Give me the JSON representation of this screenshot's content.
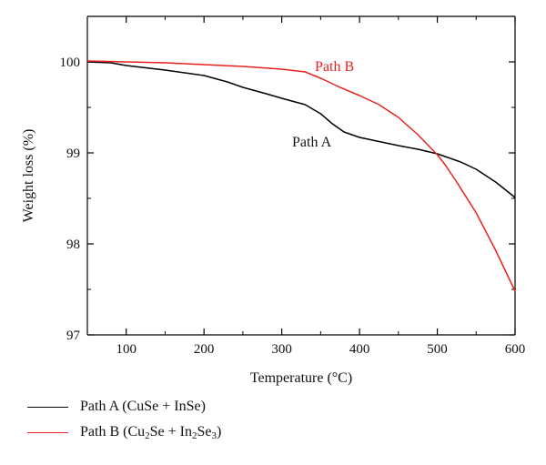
{
  "chart_data": {
    "type": "line",
    "xlabel": "Temperature (°C)",
    "ylabel": "Weight loss (%)",
    "xlim": [
      50,
      600
    ],
    "ylim": [
      97,
      100.5
    ],
    "xticks": [
      100,
      200,
      300,
      400,
      500,
      600
    ],
    "yticks": [
      97,
      98,
      99,
      100
    ],
    "grid": false,
    "legend_position": "bottom",
    "series": [
      {
        "id": "path_a",
        "color": "#000000",
        "annotation": "Path A",
        "legend_label": "Path A (CuSe + InSe)",
        "legend_parts": [
          {
            "t": "Path A (CuSe + InSe)"
          }
        ],
        "x": [
          50,
          80,
          100,
          150,
          200,
          230,
          250,
          280,
          300,
          330,
          350,
          365,
          380,
          400,
          450,
          475,
          500,
          530,
          550,
          575,
          600
        ],
        "y": [
          100.0,
          99.99,
          99.96,
          99.91,
          99.85,
          99.78,
          99.72,
          99.65,
          99.6,
          99.53,
          99.43,
          99.32,
          99.23,
          99.17,
          99.08,
          99.04,
          98.99,
          98.9,
          98.82,
          98.68,
          98.51
        ]
      },
      {
        "id": "path_b",
        "color": "#e8211c",
        "annotation": "Path B",
        "legend_label": "Path B (Cu2Se + In2Se3)",
        "legend_parts": [
          {
            "t": "Path B (Cu"
          },
          {
            "t": "2",
            "sub": true
          },
          {
            "t": "Se + In"
          },
          {
            "t": "2",
            "sub": true
          },
          {
            "t": "Se"
          },
          {
            "t": "3",
            "sub": true
          },
          {
            "t": ")"
          }
        ],
        "x": [
          50,
          100,
          150,
          200,
          250,
          300,
          330,
          350,
          360,
          375,
          400,
          425,
          450,
          475,
          500,
          510,
          525,
          550,
          575,
          600
        ],
        "y": [
          100.01,
          100.0,
          99.99,
          99.97,
          99.95,
          99.92,
          99.89,
          99.82,
          99.78,
          99.72,
          99.63,
          99.53,
          99.39,
          99.2,
          98.98,
          98.87,
          98.68,
          98.34,
          97.93,
          97.48
        ]
      }
    ]
  }
}
